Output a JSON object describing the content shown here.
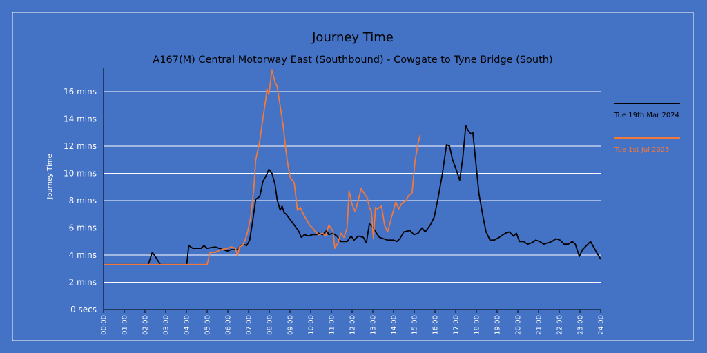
{
  "colors": {
    "background": "#4472c4",
    "border": "#ffffff",
    "gridline": "#ffffff",
    "series_2024": "#000000",
    "series_2025": "#f2783c"
  },
  "chart_data": {
    "type": "line",
    "title": "Journey Time",
    "subtitle": "A167(M) Central Motorway East (Southbound) - Cowgate to Tyne Bridge (South)",
    "ylabel": "Journey Time",
    "xlabel": "",
    "xlim": [
      0,
      24
    ],
    "ylim": [
      0,
      16
    ],
    "grid": "horizontal",
    "legend_position": "right",
    "x_ticks": [
      "00:00",
      "01:00",
      "02:00",
      "03:00",
      "04:00",
      "05:00",
      "06:00",
      "07:00",
      "08:00",
      "09:00",
      "10:00",
      "11:00",
      "12:00",
      "13:00",
      "14:00",
      "15:00",
      "16:00",
      "17:00",
      "18:00",
      "19:00",
      "20:00",
      "21:00",
      "22:00",
      "23:00",
      "24:00"
    ],
    "y_ticks": [
      {
        "value": 0,
        "label": "0 secs"
      },
      {
        "value": 2,
        "label": "2 mins"
      },
      {
        "value": 4,
        "label": "4 mins"
      },
      {
        "value": 6,
        "label": "6 mins"
      },
      {
        "value": 8,
        "label": "8 mins"
      },
      {
        "value": 10,
        "label": "10 mins"
      },
      {
        "value": 12,
        "label": "12 mins"
      },
      {
        "value": 14,
        "label": "14 mins"
      },
      {
        "value": 16,
        "label": "16 mins"
      }
    ],
    "series": [
      {
        "name": "Tue 19th Mar 2024",
        "color": "#000000",
        "points": [
          [
            0,
            3.3
          ],
          [
            2.2,
            3.3
          ],
          [
            2.4,
            4.2
          ],
          [
            2.55,
            3.9
          ],
          [
            2.8,
            3.3
          ],
          [
            4.1,
            3.3
          ],
          [
            4.2,
            4.7
          ],
          [
            4.4,
            4.5
          ],
          [
            4.8,
            4.5
          ],
          [
            4.95,
            4.7
          ],
          [
            5.1,
            4.5
          ],
          [
            5.5,
            4.6
          ],
          [
            5.9,
            4.4
          ],
          [
            6.1,
            4.3
          ],
          [
            6.3,
            4.4
          ],
          [
            6.6,
            4.4
          ],
          [
            6.75,
            4.7
          ],
          [
            6.9,
            4.8
          ],
          [
            7.05,
            4.7
          ],
          [
            7.2,
            5.1
          ],
          [
            7.35,
            6.5
          ],
          [
            7.5,
            8.1
          ],
          [
            7.7,
            8.3
          ],
          [
            7.85,
            9.4
          ],
          [
            8.0,
            9.8
          ],
          [
            8.15,
            10.3
          ],
          [
            8.3,
            10.0
          ],
          [
            8.45,
            9.2
          ],
          [
            8.55,
            8.1
          ],
          [
            8.7,
            7.3
          ],
          [
            8.8,
            7.6
          ],
          [
            8.9,
            7.1
          ],
          [
            9.0,
            7.0
          ],
          [
            9.15,
            6.7
          ],
          [
            9.3,
            6.4
          ],
          [
            9.45,
            6.1
          ],
          [
            9.6,
            5.8
          ],
          [
            9.75,
            5.3
          ],
          [
            9.9,
            5.5
          ],
          [
            10.1,
            5.4
          ],
          [
            10.3,
            5.5
          ],
          [
            10.5,
            5.5
          ],
          [
            10.6,
            5.6
          ],
          [
            10.8,
            5.5
          ],
          [
            11.0,
            5.8
          ],
          [
            11.1,
            5.5
          ],
          [
            11.3,
            5.6
          ],
          [
            11.5,
            5.4
          ],
          [
            11.7,
            5.0
          ],
          [
            12.0,
            5.0
          ],
          [
            12.2,
            5.4
          ],
          [
            12.35,
            5.1
          ],
          [
            12.55,
            5.4
          ],
          [
            12.8,
            5.3
          ],
          [
            12.95,
            4.9
          ],
          [
            13.1,
            6.3
          ],
          [
            13.3,
            6.0
          ],
          [
            13.45,
            5.6
          ],
          [
            13.6,
            5.3
          ],
          [
            13.8,
            5.2
          ],
          [
            14.0,
            5.1
          ],
          [
            14.3,
            5.1
          ],
          [
            14.45,
            5.0
          ],
          [
            14.6,
            5.2
          ],
          [
            14.8,
            5.7
          ],
          [
            15.1,
            5.8
          ],
          [
            15.3,
            5.5
          ],
          [
            15.5,
            5.6
          ],
          [
            15.7,
            6.0
          ],
          [
            15.85,
            5.7
          ],
          [
            16.1,
            6.2
          ],
          [
            16.3,
            6.8
          ],
          [
            16.5,
            8.3
          ],
          [
            16.7,
            10.0
          ],
          [
            16.9,
            12.1
          ],
          [
            17.05,
            12.0
          ],
          [
            17.2,
            11.0
          ],
          [
            17.4,
            10.2
          ],
          [
            17.55,
            9.5
          ],
          [
            17.7,
            11.1
          ],
          [
            17.85,
            13.5
          ],
          [
            17.95,
            13.2
          ],
          [
            18.1,
            12.9
          ],
          [
            18.2,
            13.0
          ],
          [
            18.3,
            11.5
          ],
          [
            18.5,
            8.5
          ],
          [
            18.7,
            6.8
          ],
          [
            18.85,
            5.7
          ],
          [
            19.05,
            5.1
          ],
          [
            19.25,
            5.1
          ],
          [
            19.5,
            5.3
          ],
          [
            19.8,
            5.6
          ],
          [
            20.0,
            5.7
          ],
          [
            20.2,
            5.4
          ],
          [
            20.35,
            5.6
          ],
          [
            20.5,
            5.0
          ],
          [
            20.7,
            5.0
          ],
          [
            20.9,
            4.8
          ],
          [
            21.1,
            4.9
          ],
          [
            21.3,
            5.1
          ],
          [
            21.5,
            5.0
          ],
          [
            21.7,
            4.8
          ],
          [
            21.9,
            4.9
          ],
          [
            22.1,
            5.0
          ],
          [
            22.3,
            5.2
          ],
          [
            22.5,
            5.1
          ],
          [
            22.7,
            4.8
          ],
          [
            22.9,
            4.8
          ],
          [
            23.1,
            5.0
          ],
          [
            23.25,
            4.8
          ],
          [
            23.45,
            3.9
          ],
          [
            23.6,
            4.4
          ],
          [
            23.8,
            4.7
          ],
          [
            24.0,
            5.0
          ],
          [
            24.15,
            4.6
          ],
          [
            24.3,
            4.2
          ],
          [
            24.5,
            3.7
          ]
        ]
      },
      {
        "name": "Tue 1st Jul 2025",
        "color": "#f2783c",
        "points": [
          [
            0,
            3.3
          ],
          [
            2.2,
            3.3
          ],
          [
            2.4,
            3.3
          ],
          [
            4.3,
            3.3
          ],
          [
            5.1,
            3.3
          ],
          [
            5.25,
            4.2
          ],
          [
            5.5,
            4.2
          ],
          [
            5.8,
            4.4
          ],
          [
            6.1,
            4.5
          ],
          [
            6.3,
            4.6
          ],
          [
            6.5,
            4.5
          ],
          [
            6.6,
            3.95
          ],
          [
            6.7,
            4.6
          ],
          [
            6.85,
            4.7
          ],
          [
            7.0,
            5.2
          ],
          [
            7.1,
            5.7
          ],
          [
            7.25,
            6.8
          ],
          [
            7.4,
            8.8
          ],
          [
            7.5,
            11.0
          ],
          [
            7.7,
            12.4
          ],
          [
            7.85,
            14.0
          ],
          [
            8.0,
            15.5
          ],
          [
            8.05,
            16.2
          ],
          [
            8.15,
            15.8
          ],
          [
            8.3,
            17.6
          ],
          [
            8.45,
            16.7
          ],
          [
            8.55,
            16.4
          ],
          [
            8.7,
            15.0
          ],
          [
            8.85,
            13.5
          ],
          [
            9.0,
            11.5
          ],
          [
            9.1,
            10.5
          ],
          [
            9.2,
            9.7
          ],
          [
            9.4,
            9.3
          ],
          [
            9.55,
            7.3
          ],
          [
            9.7,
            7.5
          ],
          [
            9.85,
            7.0
          ],
          [
            10.0,
            6.6
          ],
          [
            10.15,
            6.2
          ],
          [
            10.3,
            6.0
          ],
          [
            10.45,
            5.7
          ],
          [
            10.6,
            5.5
          ],
          [
            10.8,
            5.6
          ],
          [
            10.95,
            5.4
          ],
          [
            11.1,
            6.2
          ],
          [
            11.3,
            5.8
          ],
          [
            11.4,
            4.5
          ],
          [
            11.55,
            4.9
          ],
          [
            11.7,
            5.6
          ],
          [
            11.85,
            5.3
          ],
          [
            12.0,
            6.0
          ],
          [
            12.1,
            8.7
          ],
          [
            12.25,
            7.7
          ],
          [
            12.4,
            7.2
          ],
          [
            12.55,
            8.0
          ],
          [
            12.7,
            8.9
          ],
          [
            12.85,
            8.5
          ],
          [
            13.0,
            8.2
          ],
          [
            13.1,
            7.5
          ],
          [
            13.2,
            7.2
          ],
          [
            13.3,
            5.2
          ],
          [
            13.4,
            7.5
          ],
          [
            13.5,
            7.4
          ],
          [
            13.7,
            7.6
          ],
          [
            13.85,
            6.2
          ],
          [
            14.0,
            5.7
          ],
          [
            14.2,
            6.8
          ],
          [
            14.4,
            7.9
          ],
          [
            14.55,
            7.4
          ],
          [
            14.7,
            7.8
          ],
          [
            14.9,
            8.0
          ],
          [
            15.05,
            8.4
          ],
          [
            15.2,
            8.5
          ],
          [
            15.35,
            10.9
          ],
          [
            15.5,
            12.2
          ],
          [
            15.6,
            12.8
          ]
        ]
      }
    ]
  }
}
